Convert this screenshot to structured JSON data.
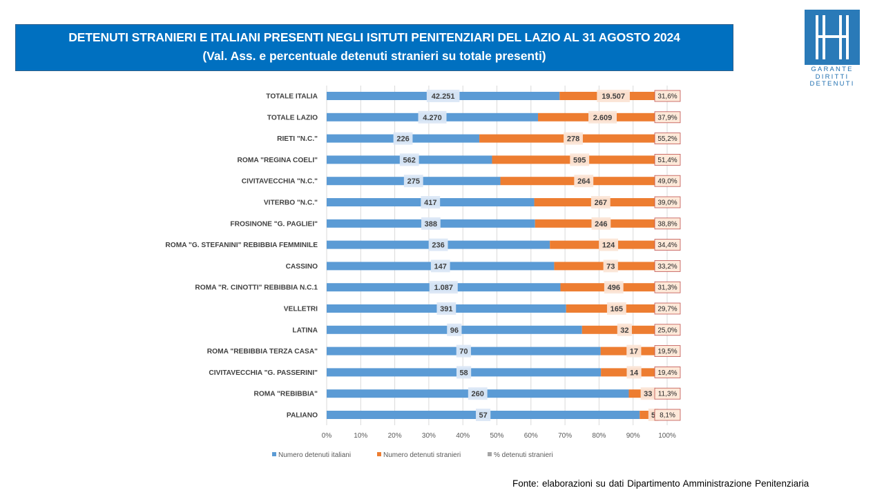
{
  "header": {
    "title_line1": "DETENUTI STRANIERI E ITALIANI PRESENTI NEGLI ISITUTI PENITENZIARI DEL LAZIO AL 31 AGOSTO 2024",
    "title_line2": "(Val. Ass. e percentuale  detenuti stranieri su totale presenti)"
  },
  "logo": {
    "lines": [
      "GARANTE",
      "DIRITTI",
      "DETENUTI"
    ],
    "color": "#2a7ab8"
  },
  "footer": {
    "source": "Fonte: elaborazioni su dati Dipartimento Amministrazione Penitenziaria"
  },
  "colors": {
    "italiani": "#5b9bd5",
    "stranieri": "#ed7d31",
    "percent": "#a5a5a5",
    "banner": "#0070c0"
  },
  "chart_data": {
    "type": "bar",
    "orientation": "horizontal",
    "stacked": "percent",
    "categories": [
      "TOTALE ITALIA",
      "TOTALE LAZIO",
      "RIETI \"N.C.\"",
      "ROMA \"REGINA COELI\"",
      "CIVITAVECCHIA \"N.C.\"",
      "VITERBO \"N.C.\"",
      "FROSINONE \"G. PAGLIEI\"",
      "ROMA \"G. STEFANINI\" REBIBBIA FEMMINILE",
      "CASSINO",
      "ROMA \"R. CINOTTI\" REBIBBIA N.C.1",
      "VELLETRI",
      "LATINA",
      "ROMA \"REBIBBIA TERZA CASA\"",
      "CIVITAVECCHIA \"G. PASSERINI\"",
      "ROMA \"REBIBBIA\"",
      "PALIANO"
    ],
    "series": [
      {
        "name": "Numero detenuti italiani",
        "values": [
          42251,
          4270,
          226,
          562,
          275,
          417,
          388,
          236,
          147,
          1087,
          391,
          96,
          70,
          58,
          260,
          57
        ],
        "labels": [
          "42.251",
          "4.270",
          "226",
          "562",
          "275",
          "417",
          "388",
          "236",
          "147",
          "1.087",
          "391",
          "96",
          "70",
          "58",
          "260",
          "57"
        ]
      },
      {
        "name": "Numero detenuti stranieri",
        "values": [
          19507,
          2609,
          278,
          595,
          264,
          267,
          246,
          124,
          73,
          496,
          165,
          32,
          17,
          14,
          33,
          5
        ],
        "labels": [
          "19.507",
          "2.609",
          "278",
          "595",
          "264",
          "267",
          "246",
          "124",
          "73",
          "496",
          "165",
          "32",
          "17",
          "14",
          "33",
          "5"
        ]
      },
      {
        "name": "% detenuti stranieri",
        "values": [
          31.6,
          37.9,
          55.2,
          51.4,
          49.0,
          39.0,
          38.8,
          34.4,
          33.2,
          31.3,
          29.7,
          25.0,
          19.5,
          19.4,
          11.3,
          8.1
        ],
        "labels": [
          "31,6%",
          "37,9%",
          "55,2%",
          "51,4%",
          "49,0%",
          "39,0%",
          "38,8%",
          "34,4%",
          "33,2%",
          "31,3%",
          "29,7%",
          "25,0%",
          "19,5%",
          "19,4%",
          "11,3%",
          "8,1%"
        ]
      }
    ],
    "x_ticks": [
      "0%",
      "10%",
      "20%",
      "30%",
      "40%",
      "50%",
      "60%",
      "70%",
      "80%",
      "90%",
      "100%"
    ],
    "xlim": [
      0,
      100
    ],
    "grid": true,
    "legend_position": "bottom"
  }
}
